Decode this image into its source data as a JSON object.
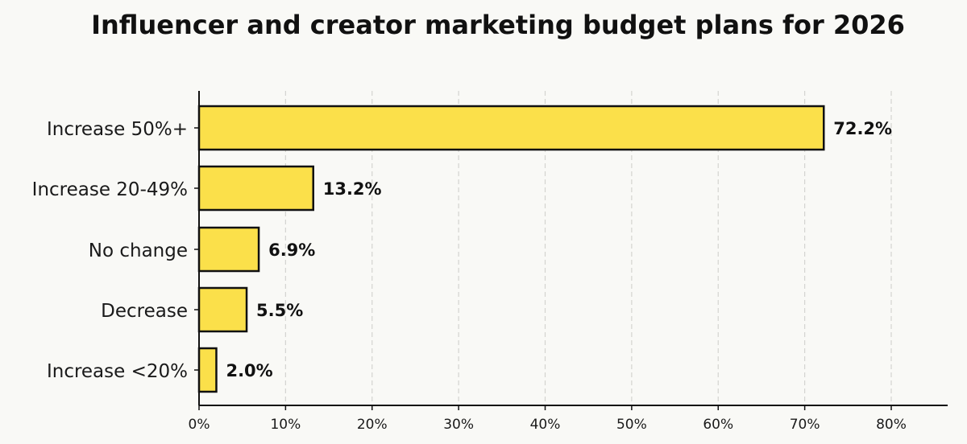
{
  "chart_data": {
    "type": "bar",
    "orientation": "horizontal",
    "title": "Influencer and creator marketing budget plans for 2026",
    "xlabel": "",
    "ylabel": "",
    "categories": [
      "Increase 50%+",
      "Increase 20-49%",
      "No change",
      "Decrease",
      "Increase <20%"
    ],
    "values": [
      72.2,
      13.2,
      6.9,
      5.5,
      2.0
    ],
    "data_labels": [
      "72.2%",
      "13.2%",
      "6.9%",
      "5.5%",
      "2.0%"
    ],
    "xlim": [
      0,
      86.5
    ],
    "xticks": [
      0,
      10,
      20,
      30,
      40,
      50,
      60,
      70,
      80
    ],
    "xtick_labels": [
      "0%",
      "10%",
      "20%",
      "30%",
      "40%",
      "50%",
      "60%",
      "70%",
      "80%"
    ],
    "grid": "vertical dashed",
    "legend": "none",
    "colors": {
      "bar": "#fbe04a",
      "edge": "#111111",
      "grid": "#d4d4d0",
      "background": "#f9f9f6"
    }
  }
}
